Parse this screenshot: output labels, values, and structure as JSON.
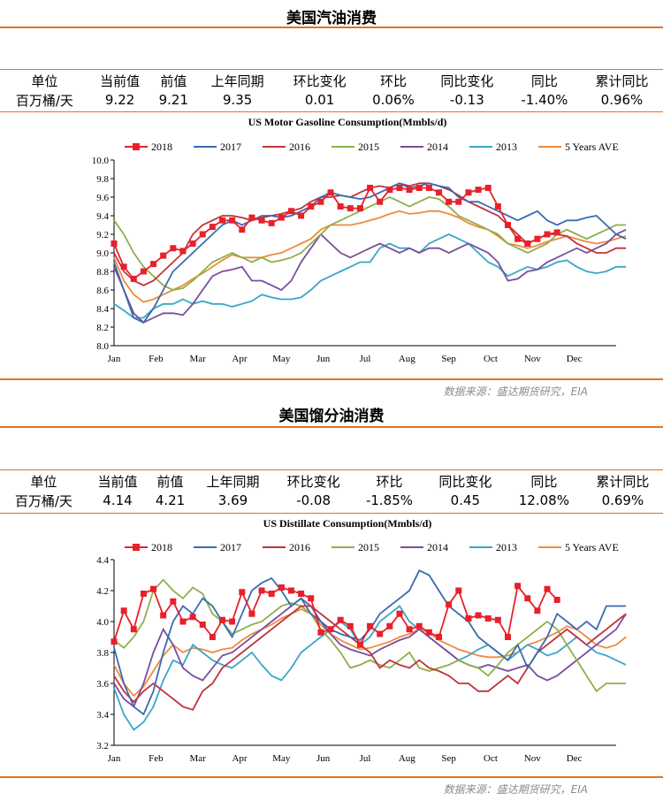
{
  "sections": [
    {
      "title": "美国汽油消费",
      "kpi": {
        "headers": [
          "单位",
          "当前值",
          "前值",
          "上年同期",
          "环比变化",
          "环比",
          "同比变化",
          "同比",
          "累计同比"
        ],
        "values": [
          "百万桶/天",
          "9.22",
          "9.21",
          "9.35",
          "0.01",
          "0.06%",
          "-0.13",
          "-1.40%",
          "0.96%"
        ]
      },
      "source": "数据来源：盛达期货研究，EIA"
    },
    {
      "title": "美国馏分油消费",
      "kpi": {
        "headers": [
          "单位",
          "当前值",
          "前值",
          "上年同期",
          "环比变化",
          "环比",
          "同比变化",
          "同比",
          "累计同比"
        ],
        "values": [
          "百万桶/天",
          "4.14",
          "4.21",
          "3.69",
          "-0.08",
          "-1.85%",
          "0.45",
          "12.08%",
          "0.69%"
        ]
      },
      "source": "数据来源：盛达期货研究，EIA"
    }
  ],
  "chart_data": [
    {
      "type": "line",
      "title": "US Motor Gasoline Consumption(Mmbls/d)",
      "ylim": [
        8.0,
        10.0
      ],
      "yticks": [
        "8.0",
        "8.2",
        "8.4",
        "8.6",
        "8.8",
        "9.0",
        "9.2",
        "9.4",
        "9.6",
        "9.8",
        "10.0"
      ],
      "xticks": [
        "Jan",
        "Feb",
        "Mar",
        "Apr",
        "May",
        "Jun",
        "Jul",
        "Aug",
        "Sep",
        "Oct",
        "Nov",
        "Dec"
      ],
      "x_weeks": 52,
      "legend": "top",
      "series": [
        {
          "name": "2018",
          "color": "#e8202a",
          "marker": "square",
          "values": [
            9.1,
            8.85,
            8.72,
            8.8,
            8.88,
            8.97,
            9.05,
            9.02,
            9.1,
            9.2,
            9.28,
            9.35,
            9.35,
            9.25,
            9.38,
            9.35,
            9.32,
            9.38,
            9.45,
            9.4,
            9.5,
            9.55,
            9.65,
            9.5,
            9.48,
            9.48,
            9.7,
            9.55,
            9.68,
            9.7,
            9.68,
            9.7,
            9.7,
            9.65,
            9.55,
            9.55,
            9.65,
            9.68,
            9.7,
            9.5,
            9.3,
            9.15,
            9.1,
            9.15,
            9.2,
            9.22
          ]
        },
        {
          "name": "2017",
          "color": "#3a6bb0",
          "values": [
            8.9,
            8.6,
            8.3,
            8.25,
            8.4,
            8.6,
            8.8,
            8.9,
            9.0,
            9.1,
            9.2,
            9.3,
            9.35,
            9.3,
            9.35,
            9.4,
            9.4,
            9.38,
            9.4,
            9.45,
            9.5,
            9.6,
            9.65,
            9.62,
            9.6,
            9.58,
            9.6,
            9.65,
            9.7,
            9.75,
            9.7,
            9.72,
            9.75,
            9.72,
            9.7,
            9.6,
            9.55,
            9.55,
            9.5,
            9.45,
            9.4,
            9.35,
            9.4,
            9.45,
            9.35,
            9.3,
            9.35,
            9.35,
            9.38,
            9.4,
            9.3,
            9.2,
            9.15
          ]
        },
        {
          "name": "2016",
          "color": "#c0333b",
          "values": [
            9.0,
            8.8,
            8.7,
            8.65,
            8.7,
            8.8,
            8.9,
            9.0,
            9.2,
            9.3,
            9.35,
            9.4,
            9.4,
            9.38,
            9.35,
            9.38,
            9.4,
            9.42,
            9.45,
            9.48,
            9.55,
            9.6,
            9.6,
            9.62,
            9.6,
            9.65,
            9.7,
            9.72,
            9.7,
            9.75,
            9.72,
            9.75,
            9.75,
            9.72,
            9.68,
            9.62,
            9.55,
            9.5,
            9.45,
            9.4,
            9.3,
            9.2,
            9.1,
            9.15,
            9.2,
            9.2,
            9.18,
            9.1,
            9.05,
            9.0,
            9.0,
            9.05,
            9.05
          ]
        },
        {
          "name": "2015",
          "color": "#8db04b",
          "values": [
            9.35,
            9.2,
            9.0,
            8.85,
            8.75,
            8.65,
            8.6,
            8.62,
            8.7,
            8.8,
            8.9,
            8.95,
            9.0,
            8.95,
            8.9,
            8.95,
            8.9,
            8.92,
            8.95,
            9.0,
            9.1,
            9.2,
            9.3,
            9.35,
            9.4,
            9.45,
            9.5,
            9.55,
            9.6,
            9.55,
            9.5,
            9.55,
            9.6,
            9.58,
            9.5,
            9.4,
            9.35,
            9.3,
            9.25,
            9.2,
            9.1,
            9.05,
            9.0,
            9.05,
            9.1,
            9.2,
            9.25,
            9.2,
            9.15,
            9.2,
            9.25,
            9.3,
            9.3
          ]
        },
        {
          "name": "2014",
          "color": "#7a4d9e",
          "values": [
            8.85,
            8.6,
            8.35,
            8.25,
            8.3,
            8.35,
            8.35,
            8.33,
            8.45,
            8.6,
            8.75,
            8.8,
            8.82,
            8.85,
            8.7,
            8.7,
            8.65,
            8.6,
            8.7,
            8.9,
            9.05,
            9.2,
            9.1,
            9.0,
            8.95,
            9.0,
            9.05,
            9.1,
            9.05,
            9.0,
            9.05,
            9.0,
            9.05,
            9.05,
            9.0,
            9.05,
            9.1,
            9.05,
            9.0,
            8.9,
            8.7,
            8.72,
            8.8,
            8.82,
            8.9,
            8.95,
            9.0,
            9.05,
            9.0,
            9.05,
            9.1,
            9.2,
            9.25
          ]
        },
        {
          "name": "2013",
          "color": "#3aa6c9",
          "values": [
            8.45,
            8.38,
            8.3,
            8.3,
            8.4,
            8.45,
            8.45,
            8.5,
            8.45,
            8.48,
            8.45,
            8.45,
            8.42,
            8.45,
            8.48,
            8.55,
            8.52,
            8.5,
            8.5,
            8.52,
            8.6,
            8.7,
            8.75,
            8.8,
            8.85,
            8.9,
            8.9,
            9.05,
            9.1,
            9.05,
            9.05,
            9.0,
            9.1,
            9.15,
            9.2,
            9.15,
            9.1,
            9.0,
            8.9,
            8.85,
            8.75,
            8.8,
            8.85,
            8.82,
            8.85,
            8.9,
            8.92,
            8.85,
            8.8,
            8.78,
            8.8,
            8.85,
            8.85
          ]
        },
        {
          "name": "5 Years AVE",
          "color": "#f08a3c",
          "values": [
            8.95,
            8.7,
            8.55,
            8.47,
            8.5,
            8.55,
            8.6,
            8.65,
            8.72,
            8.78,
            8.85,
            8.92,
            8.98,
            8.95,
            8.95,
            8.95,
            8.98,
            9.0,
            9.05,
            9.1,
            9.15,
            9.25,
            9.3,
            9.3,
            9.3,
            9.32,
            9.35,
            9.38,
            9.42,
            9.45,
            9.42,
            9.43,
            9.45,
            9.45,
            9.42,
            9.38,
            9.32,
            9.28,
            9.25,
            9.18,
            9.1,
            9.08,
            9.05,
            9.08,
            9.12,
            9.15,
            9.18,
            9.15,
            9.12,
            9.1,
            9.12,
            9.15,
            9.18
          ]
        }
      ]
    },
    {
      "type": "line",
      "title": "US Distillate Consumption(Mmbls/d)",
      "ylim": [
        3.2,
        4.4
      ],
      "yticks": [
        "3.2",
        "3.4",
        "3.6",
        "3.8",
        "4.0",
        "4.2",
        "4.4"
      ],
      "xticks": [
        "Jan",
        "Feb",
        "Mar",
        "Apr",
        "May",
        "Jun",
        "Jul",
        "Aug",
        "Sep",
        "Oct",
        "Nov",
        "Dec"
      ],
      "x_weeks": 52,
      "legend": "top",
      "series": [
        {
          "name": "2018",
          "color": "#e8202a",
          "marker": "square",
          "values": [
            3.87,
            4.07,
            3.95,
            4.18,
            4.21,
            4.04,
            4.13,
            4.0,
            4.03,
            3.98,
            3.9,
            4.01,
            4.0,
            4.19,
            4.05,
            4.2,
            4.18,
            4.22,
            4.2,
            4.18,
            4.15,
            3.93,
            3.95,
            4.01,
            3.97,
            3.85,
            3.97,
            3.92,
            3.97,
            4.05,
            3.95,
            3.97,
            3.93,
            3.9,
            4.11,
            4.2,
            4.02,
            4.04,
            4.02,
            4.01,
            3.9,
            4.23,
            4.15,
            4.07,
            4.21,
            4.14
          ]
        },
        {
          "name": "2017",
          "color": "#3a6bb0",
          "values": [
            3.83,
            3.6,
            3.45,
            3.4,
            3.55,
            3.8,
            4.0,
            4.1,
            4.05,
            4.15,
            4.1,
            4.0,
            3.9,
            4.05,
            4.2,
            4.25,
            4.28,
            4.2,
            4.1,
            4.15,
            4.05,
            4.0,
            3.95,
            3.92,
            3.9,
            3.88,
            3.95,
            4.05,
            4.1,
            4.15,
            4.2,
            4.33,
            4.3,
            4.2,
            4.1,
            4.05,
            4.0,
            3.9,
            3.85,
            3.8,
            3.75,
            3.85,
            3.7,
            3.8,
            3.9,
            4.05,
            4.0,
            3.95,
            4.0,
            3.95,
            4.1,
            4.1,
            4.1
          ]
        },
        {
          "name": "2016",
          "color": "#c0333b",
          "values": [
            3.65,
            3.55,
            3.48,
            3.55,
            3.6,
            3.55,
            3.5,
            3.45,
            3.43,
            3.55,
            3.6,
            3.7,
            3.75,
            3.8,
            3.85,
            3.9,
            3.95,
            4.0,
            4.05,
            4.1,
            4.1,
            4.05,
            4.0,
            3.95,
            3.9,
            3.85,
            3.8,
            3.7,
            3.75,
            3.72,
            3.7,
            3.75,
            3.7,
            3.68,
            3.65,
            3.6,
            3.6,
            3.55,
            3.55,
            3.6,
            3.65,
            3.6,
            3.7,
            3.8,
            3.85,
            3.9,
            3.95,
            3.9,
            3.85,
            3.9,
            3.95,
            4.0,
            4.05
          ]
        },
        {
          "name": "2015",
          "color": "#8db04b",
          "values": [
            3.88,
            3.83,
            3.9,
            4.0,
            4.2,
            4.27,
            4.2,
            4.15,
            4.22,
            4.18,
            4.05,
            4.0,
            3.92,
            3.95,
            3.98,
            4.0,
            4.05,
            4.1,
            4.12,
            4.1,
            4.05,
            3.95,
            3.88,
            3.8,
            3.7,
            3.72,
            3.75,
            3.72,
            3.7,
            3.75,
            3.8,
            3.7,
            3.68,
            3.7,
            3.72,
            3.75,
            3.72,
            3.7,
            3.65,
            3.72,
            3.8,
            3.85,
            3.9,
            3.95,
            4.0,
            3.95,
            3.85,
            3.75,
            3.65,
            3.55,
            3.6,
            3.6,
            3.6
          ]
        },
        {
          "name": "2014",
          "color": "#7a4d9e",
          "values": [
            3.6,
            3.5,
            3.45,
            3.6,
            3.8,
            3.95,
            3.85,
            3.7,
            3.65,
            3.62,
            3.7,
            3.78,
            3.8,
            3.85,
            3.9,
            3.95,
            4.0,
            4.05,
            4.1,
            4.15,
            4.1,
            4.0,
            3.92,
            3.85,
            3.82,
            3.8,
            3.78,
            3.82,
            3.85,
            3.88,
            3.9,
            3.95,
            3.9,
            3.85,
            3.8,
            3.75,
            3.72,
            3.7,
            3.72,
            3.7,
            3.68,
            3.7,
            3.72,
            3.65,
            3.62,
            3.65,
            3.7,
            3.75,
            3.8,
            3.85,
            3.9,
            3.95,
            4.05
          ]
        },
        {
          "name": "2013",
          "color": "#3aa6c9",
          "values": [
            3.57,
            3.4,
            3.3,
            3.35,
            3.45,
            3.62,
            3.75,
            3.72,
            3.85,
            3.8,
            3.75,
            3.72,
            3.7,
            3.75,
            3.8,
            3.72,
            3.65,
            3.62,
            3.7,
            3.8,
            3.85,
            3.9,
            3.95,
            4.0,
            3.95,
            3.85,
            3.9,
            4.0,
            4.05,
            4.1,
            4.0,
            3.95,
            3.9,
            3.85,
            3.8,
            3.75,
            3.78,
            3.82,
            3.85,
            3.8,
            3.75,
            3.8,
            3.85,
            3.82,
            3.78,
            3.8,
            3.85,
            3.9,
            3.85,
            3.8,
            3.78,
            3.75,
            3.72
          ]
        },
        {
          "name": "5 Years AVE",
          "color": "#f08a3c",
          "values": [
            3.72,
            3.6,
            3.52,
            3.58,
            3.68,
            3.78,
            3.85,
            3.8,
            3.83,
            3.82,
            3.8,
            3.82,
            3.83,
            3.88,
            3.92,
            3.95,
            3.98,
            4.02,
            4.05,
            4.08,
            4.05,
            3.98,
            3.92,
            3.88,
            3.85,
            3.82,
            3.83,
            3.85,
            3.87,
            3.9,
            3.92,
            3.95,
            3.93,
            3.88,
            3.85,
            3.82,
            3.8,
            3.78,
            3.77,
            3.77,
            3.78,
            3.8,
            3.85,
            3.87,
            3.9,
            3.93,
            3.97,
            3.95,
            3.9,
            3.85,
            3.83,
            3.85,
            3.9
          ]
        }
      ]
    }
  ]
}
